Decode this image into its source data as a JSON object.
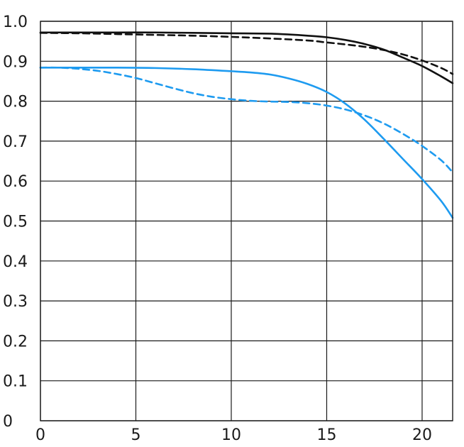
{
  "chart_data": {
    "type": "line",
    "title": "",
    "xlabel": "",
    "ylabel": "",
    "xlim": [
      0,
      21.6
    ],
    "ylim": [
      0,
      1.0
    ],
    "grid": true,
    "x_ticks": [
      0,
      5,
      10,
      15,
      20
    ],
    "x_tick_labels": [
      "0",
      "5",
      "10",
      "15",
      "20"
    ],
    "y_ticks": [
      0,
      0.1,
      0.2,
      0.3,
      0.4,
      0.5,
      0.6,
      0.7,
      0.8,
      0.9,
      1.0
    ],
    "y_tick_labels": [
      "0",
      "0.1",
      "0.2",
      "0.3",
      "0.4",
      "0.5",
      "0.6",
      "0.7",
      "0.8",
      "0.9",
      "1.0"
    ],
    "series": [
      {
        "color": "#111111",
        "dash": "solid",
        "x": [
          0,
          2,
          4,
          6,
          8,
          10,
          12,
          13,
          14,
          15,
          16,
          17,
          18,
          19,
          20,
          21,
          21.6
        ],
        "y": [
          0.972,
          0.972,
          0.972,
          0.972,
          0.971,
          0.97,
          0.969,
          0.967,
          0.964,
          0.96,
          0.953,
          0.943,
          0.929,
          0.909,
          0.888,
          0.862,
          0.845
        ]
      },
      {
        "color": "#111111",
        "dash": "dashed",
        "x": [
          0,
          2,
          4,
          6,
          8,
          10,
          12,
          14,
          15,
          16,
          17,
          18,
          19,
          20,
          21,
          21.6
        ],
        "y": [
          0.971,
          0.97,
          0.968,
          0.966,
          0.964,
          0.961,
          0.957,
          0.952,
          0.947,
          0.942,
          0.936,
          0.928,
          0.917,
          0.902,
          0.883,
          0.868
        ]
      },
      {
        "color": "#1e9bf0",
        "dash": "solid",
        "x": [
          0,
          2,
          4,
          6,
          8,
          10,
          11,
          12,
          13,
          14,
          15,
          16,
          17,
          18,
          19,
          20,
          21,
          21.6
        ],
        "y": [
          0.884,
          0.884,
          0.884,
          0.883,
          0.88,
          0.875,
          0.872,
          0.867,
          0.857,
          0.843,
          0.823,
          0.793,
          0.753,
          0.705,
          0.655,
          0.605,
          0.55,
          0.508
        ]
      },
      {
        "color": "#1e9bf0",
        "dash": "dashed",
        "x": [
          0,
          1,
          2,
          3,
          4,
          5,
          6,
          7,
          8,
          9,
          10,
          11,
          12,
          13,
          14,
          15,
          16,
          17,
          18,
          19,
          20,
          21,
          21.6
        ],
        "y": [
          0.884,
          0.884,
          0.881,
          0.876,
          0.868,
          0.858,
          0.845,
          0.832,
          0.82,
          0.811,
          0.805,
          0.801,
          0.799,
          0.798,
          0.795,
          0.789,
          0.779,
          0.764,
          0.744,
          0.718,
          0.688,
          0.652,
          0.622
        ]
      }
    ]
  }
}
